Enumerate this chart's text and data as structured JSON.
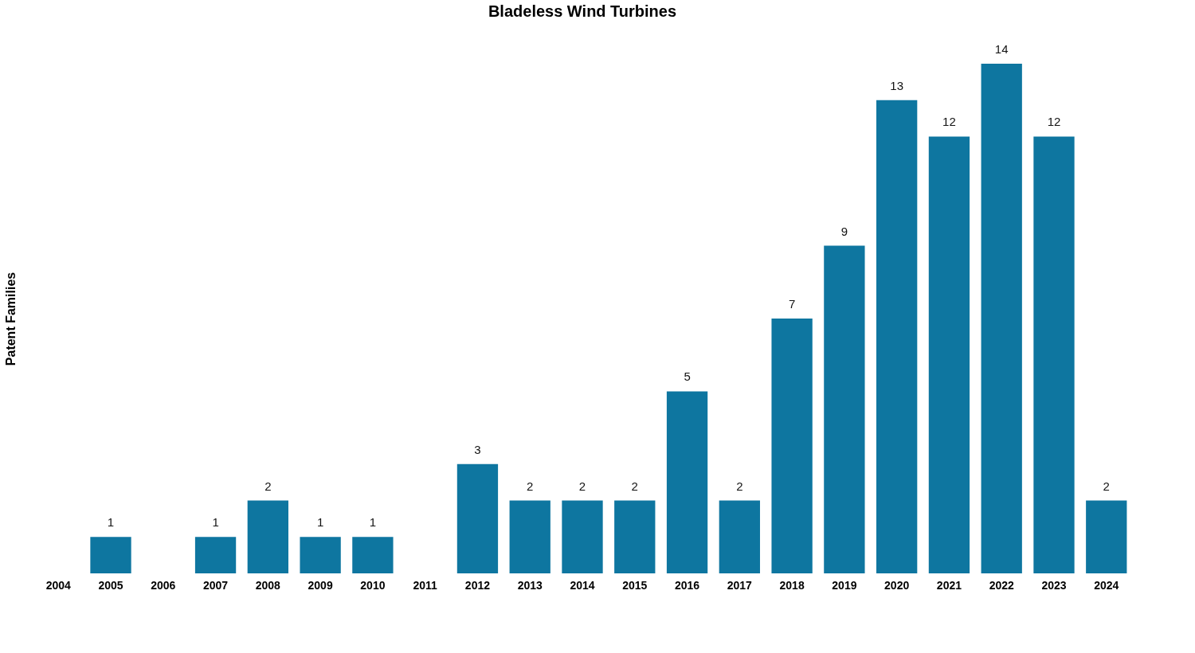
{
  "chart_data": {
    "type": "bar",
    "title": "Bladeless Wind Turbines",
    "ylabel": "Patent Families",
    "categories": [
      "2004",
      "2005",
      "2006",
      "2007",
      "2008",
      "2009",
      "2010",
      "2011",
      "2012",
      "2013",
      "2014",
      "2015",
      "2016",
      "2017",
      "2018",
      "2019",
      "2020",
      "2021",
      "2022",
      "2023",
      "2024"
    ],
    "values": [
      0,
      1,
      0,
      1,
      2,
      1,
      1,
      0,
      3,
      2,
      2,
      2,
      5,
      2,
      7,
      9,
      13,
      12,
      14,
      12,
      2
    ],
    "value_labels": [
      null,
      "1",
      null,
      "1",
      "2",
      "1",
      "1",
      null,
      "3",
      "2",
      "2",
      "2",
      "5",
      "2",
      "7",
      "9",
      "13",
      "12",
      "14",
      "12",
      "2"
    ],
    "color": "#0e76a0",
    "grid": false,
    "tick_labels": "x"
  }
}
